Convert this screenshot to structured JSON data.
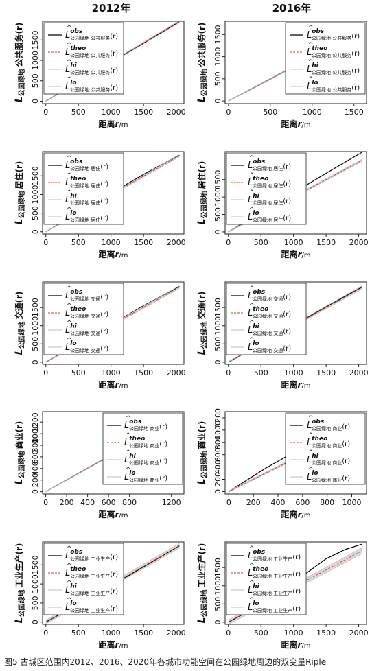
{
  "columns": [
    "2012年",
    "2016年"
  ],
  "xlabel_prefix": "距离",
  "xlabel_var": "r",
  "xlabel_unit": "/m",
  "ylabel_prefix": "公园绿地",
  "legend_sub_prefix": "公园绿地",
  "legend_arg": "(r)",
  "legend_L": "L",
  "legend_hat": "^",
  "legend_keys": [
    "obs",
    "theo",
    "hi",
    "lo"
  ],
  "caption": "图5  古城区范围内2012、2016、2020年各城市功能空间在公园绿地周边的双变量Riple",
  "colors": {
    "obs": "#000000",
    "theo": "#e0302a",
    "envelope": "#bdbdbd"
  },
  "chart_data": [
    {
      "type": "line",
      "column": "2012年",
      "function": "公共服务",
      "xticks": [
        0,
        500,
        1000,
        1500,
        2000
      ],
      "yticks": [
        0,
        500,
        1000,
        1500
      ],
      "xlim": [
        -50,
        2120
      ],
      "ylim": [
        -60,
        1960
      ],
      "legend_position": "top-left",
      "series": [
        {
          "name": "obs",
          "x": [
            0,
            500,
            1000,
            1500,
            2050
          ],
          "y": [
            0,
            470,
            950,
            1420,
            1950
          ]
        },
        {
          "name": "theo",
          "x": [
            0,
            2050
          ],
          "y": [
            0,
            1950
          ]
        },
        {
          "name": "hi",
          "x": [
            0,
            2050
          ],
          "y": [
            10,
            1975
          ]
        },
        {
          "name": "lo",
          "x": [
            0,
            2050
          ],
          "y": [
            -10,
            1925
          ]
        }
      ]
    },
    {
      "type": "line",
      "column": "2016年",
      "function": "公共服务",
      "xticks": [
        0,
        500,
        1000,
        1500
      ],
      "yticks": [
        0,
        500,
        1000,
        1500
      ],
      "xlim": [
        -40,
        1650
      ],
      "ylim": [
        -60,
        1800
      ],
      "legend_position": "top-right",
      "series": [
        {
          "name": "obs",
          "x": [
            0,
            400,
            800,
            1200,
            1600
          ],
          "y": [
            0,
            390,
            790,
            1190,
            1600
          ]
        },
        {
          "name": "theo",
          "x": [
            0,
            1600
          ],
          "y": [
            0,
            1600
          ]
        },
        {
          "name": "hi",
          "x": [
            0,
            1600
          ],
          "y": [
            8,
            1620
          ]
        },
        {
          "name": "lo",
          "x": [
            0,
            1600
          ],
          "y": [
            -8,
            1580
          ]
        }
      ]
    },
    {
      "type": "line",
      "column": "2012年",
      "function": "居住",
      "xticks": [
        0,
        500,
        1000,
        1500,
        2000
      ],
      "yticks": [
        0,
        500,
        1000,
        1500
      ],
      "xlim": [
        -50,
        2120
      ],
      "ylim": [
        -60,
        2150
      ],
      "legend_position": "top-left",
      "series": [
        {
          "name": "obs",
          "x": [
            0,
            500,
            1000,
            1500,
            2050
          ],
          "y": [
            0,
            520,
            1030,
            1540,
            2060
          ]
        },
        {
          "name": "theo",
          "x": [
            0,
            2050
          ],
          "y": [
            0,
            2040
          ]
        },
        {
          "name": "hi",
          "x": [
            0,
            2050
          ],
          "y": [
            10,
            2070
          ]
        },
        {
          "name": "lo",
          "x": [
            0,
            2050
          ],
          "y": [
            -10,
            2010
          ]
        }
      ]
    },
    {
      "type": "line",
      "column": "2016年",
      "function": "居住",
      "xticks": [
        0,
        500,
        1000,
        1500,
        2000
      ],
      "yticks": [
        0,
        500,
        1000,
        1500
      ],
      "xlim": [
        -50,
        2120
      ],
      "ylim": [
        -60,
        2300
      ],
      "legend_position": "top-left",
      "series": [
        {
          "name": "obs",
          "x": [
            0,
            500,
            1000,
            1500,
            2050
          ],
          "y": [
            0,
            560,
            1120,
            1680,
            2280
          ]
        },
        {
          "name": "theo",
          "x": [
            0,
            2050
          ],
          "y": [
            0,
            2050
          ]
        },
        {
          "name": "hi",
          "x": [
            0,
            2050
          ],
          "y": [
            10,
            2080
          ]
        },
        {
          "name": "lo",
          "x": [
            0,
            2050
          ],
          "y": [
            -10,
            2020
          ]
        }
      ]
    },
    {
      "type": "line",
      "column": "2012年",
      "function": "交通",
      "xticks": [
        0,
        500,
        1000,
        1500,
        2000
      ],
      "yticks": [
        0,
        500,
        1000,
        1500
      ],
      "xlim": [
        -50,
        2120
      ],
      "ylim": [
        -60,
        2200
      ],
      "legend_position": "top-left",
      "series": [
        {
          "name": "obs",
          "x": [
            0,
            500,
            1000,
            1500,
            2050
          ],
          "y": [
            0,
            520,
            1030,
            1550,
            2080
          ]
        },
        {
          "name": "theo",
          "x": [
            0,
            2050
          ],
          "y": [
            0,
            2060
          ]
        },
        {
          "name": "hi",
          "x": [
            0,
            2050
          ],
          "y": [
            12,
            2095
          ]
        },
        {
          "name": "lo",
          "x": [
            0,
            2050
          ],
          "y": [
            -12,
            2025
          ]
        }
      ]
    },
    {
      "type": "line",
      "column": "2016年",
      "function": "交通",
      "xticks": [
        0,
        500,
        1000,
        1500,
        2000
      ],
      "yticks": [
        0,
        500,
        1000,
        1500
      ],
      "xlim": [
        -50,
        2120
      ],
      "ylim": [
        -60,
        2200
      ],
      "legend_position": "top-left",
      "series": [
        {
          "name": "obs",
          "x": [
            0,
            500,
            1000,
            1500,
            2050
          ],
          "y": [
            0,
            500,
            1010,
            1520,
            2060
          ]
        },
        {
          "name": "theo",
          "x": [
            0,
            2050
          ],
          "y": [
            0,
            2050
          ]
        },
        {
          "name": "hi",
          "x": [
            0,
            2050
          ],
          "y": [
            15,
            2095
          ]
        },
        {
          "name": "lo",
          "x": [
            0,
            2050
          ],
          "y": [
            -15,
            2005
          ]
        }
      ]
    },
    {
      "type": "line",
      "column": "2012年",
      "function": "商业",
      "xticks": [
        0,
        200,
        400,
        600,
        800,
        1200
      ],
      "yticks": [
        0,
        200,
        400,
        600,
        800,
        1000,
        1200
      ],
      "xlim": [
        -30,
        1320
      ],
      "ylim": [
        -40,
        1380
      ],
      "legend_position": "top-right",
      "series": [
        {
          "name": "obs",
          "x": [
            0,
            400,
            800,
            1280
          ],
          "y": [
            0,
            410,
            810,
            1300
          ]
        },
        {
          "name": "theo",
          "x": [
            0,
            1280
          ],
          "y": [
            0,
            1290
          ]
        },
        {
          "name": "hi",
          "x": [
            0,
            1280
          ],
          "y": [
            6,
            1305
          ]
        },
        {
          "name": "lo",
          "x": [
            0,
            1280
          ],
          "y": [
            -6,
            1275
          ]
        }
      ]
    },
    {
      "type": "line",
      "column": "2016年",
      "function": "商业",
      "xticks": [
        0,
        200,
        400,
        600,
        800,
        1000
      ],
      "yticks": [
        0,
        200,
        400,
        600,
        800,
        1000,
        1200
      ],
      "xlim": [
        -30,
        1120
      ],
      "ylim": [
        -40,
        1300
      ],
      "legend_position": "top-right",
      "series": [
        {
          "name": "obs",
          "x": [
            0,
            300,
            600,
            900,
            1100
          ],
          "y": [
            0,
            380,
            720,
            1010,
            1180
          ]
        },
        {
          "name": "theo",
          "x": [
            0,
            1100
          ],
          "y": [
            0,
            1100
          ]
        },
        {
          "name": "hi",
          "x": [
            0,
            1100
          ],
          "y": [
            10,
            1120
          ]
        },
        {
          "name": "lo",
          "x": [
            0,
            1100
          ],
          "y": [
            -10,
            1080
          ]
        }
      ]
    },
    {
      "type": "line",
      "column": "2012年",
      "function": "工业生产",
      "xticks": [
        0,
        500,
        1000,
        1500,
        2000
      ],
      "yticks": [
        0,
        500,
        1000,
        1500
      ],
      "xlim": [
        -50,
        2120
      ],
      "ylim": [
        -60,
        2100
      ],
      "legend_position": "top-left",
      "series": [
        {
          "name": "obs",
          "x": [
            0,
            500,
            1000,
            1500,
            2050
          ],
          "y": [
            0,
            470,
            950,
            1450,
            2000
          ]
        },
        {
          "name": "theo",
          "x": [
            0,
            2050
          ],
          "y": [
            0,
            2000
          ]
        },
        {
          "name": "hi",
          "x": [
            0,
            2050
          ],
          "y": [
            50,
            2060
          ]
        },
        {
          "name": "lo",
          "x": [
            0,
            2050
          ],
          "y": [
            -50,
            1940
          ]
        }
      ]
    },
    {
      "type": "line",
      "column": "2016年",
      "function": "工业生产",
      "xticks": [
        0,
        500,
        1000,
        1500,
        2000
      ],
      "yticks": [
        0,
        500,
        1000,
        1500
      ],
      "xlim": [
        -50,
        2120
      ],
      "ylim": [
        -60,
        2200
      ],
      "legend_position": "top-left",
      "series": [
        {
          "name": "obs",
          "x": [
            0,
            300,
            600,
            900,
            1200,
            1500,
            1800,
            2050
          ],
          "y": [
            0,
            290,
            580,
            930,
            1350,
            1740,
            2000,
            2140
          ]
        },
        {
          "name": "theo",
          "x": [
            0,
            2050
          ],
          "y": [
            0,
            1960
          ]
        },
        {
          "name": "hi",
          "x": [
            0,
            2050
          ],
          "y": [
            60,
            2040
          ]
        },
        {
          "name": "lo",
          "x": [
            0,
            2050
          ],
          "y": [
            -60,
            1880
          ]
        }
      ]
    }
  ]
}
